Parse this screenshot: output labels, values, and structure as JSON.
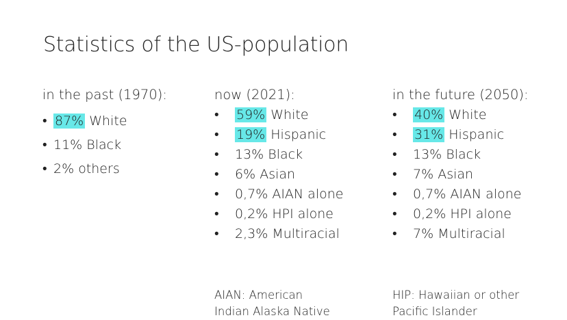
{
  "title": "Statistics of the US-population",
  "highlight_color": "#67e8e8",
  "columns": [
    {
      "heading": "in the past (1970):",
      "items": [
        {
          "pct": "87%",
          "label": " White",
          "highlight": true
        },
        {
          "pct": "11%",
          "label": " Black",
          "highlight": false
        },
        {
          "pct": "2%",
          "label": " others",
          "highlight": false
        }
      ]
    },
    {
      "heading": "now (2021):",
      "items": [
        {
          "pct": "59%",
          "label": " White",
          "highlight": true
        },
        {
          "pct": "19%",
          "label": " Hispanic",
          "highlight": true
        },
        {
          "pct": "13%",
          "label": " Black",
          "highlight": false
        },
        {
          "pct": "6%",
          "label": " Asian",
          "highlight": false
        },
        {
          "pct": "0,7%",
          "label": " AIAN alone",
          "highlight": false
        },
        {
          "pct": "0,2%",
          "label": " HPI alone",
          "highlight": false
        },
        {
          "pct": "2,3%",
          "label": " Multiracial",
          "highlight": false
        }
      ],
      "footnote": [
        "AIAN: American",
        "Indian Alaska Native"
      ]
    },
    {
      "heading": "in the future (2050):",
      "items": [
        {
          "pct": "40%",
          "label": " White",
          "highlight": true
        },
        {
          "pct": "31%",
          "label": " Hispanic",
          "highlight": true
        },
        {
          "pct": "13%",
          "label": " Black",
          "highlight": false
        },
        {
          "pct": "7%",
          "label": " Asian",
          "highlight": false
        },
        {
          "pct": "0,7%",
          "label": " AIAN alone",
          "highlight": false
        },
        {
          "pct": "0,2%",
          "label": " HPI alone",
          "highlight": false
        },
        {
          "pct": "7%",
          "label": " Multiracial",
          "highlight": false
        }
      ],
      "footnote": [
        "HIP: Hawaiian or other",
        "Pacific Islander"
      ]
    }
  ]
}
